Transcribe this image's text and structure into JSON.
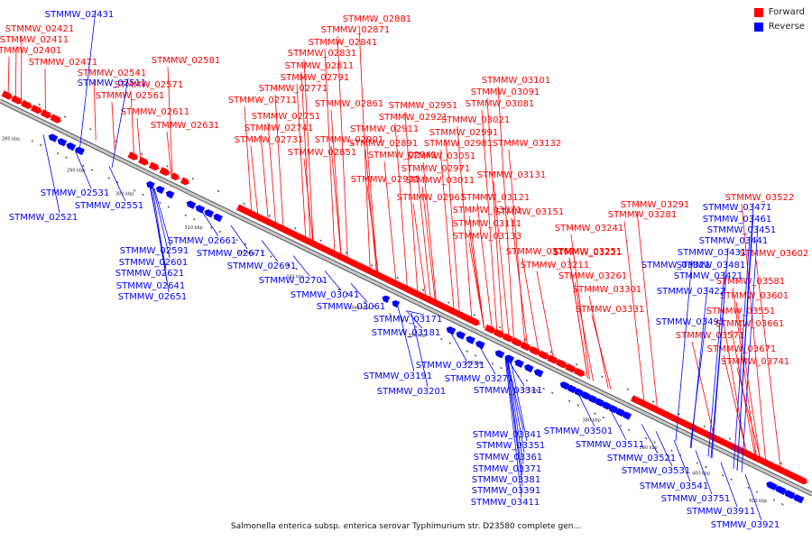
{
  "legend": {
    "forward": {
      "label": "Forward",
      "color": "#ff0000"
    },
    "reverse": {
      "label": "Reverse",
      "color": "#0000ff"
    }
  },
  "caption": "Salmonella enterica subsp. enterica serovar Typhimurium str. D23580 complete gen...",
  "ticks": [
    "280 kbp",
    "290 kbp",
    "300 kbp",
    "310 kbp",
    "320 kbp",
    "330 kbp",
    "340 kbp",
    "350 kbp",
    "360 kbp",
    "370 kbp",
    "380 kbp",
    "390 kbp",
    "400 kbp",
    "410 kbp"
  ],
  "forward_labels": [
    "STMMW_02401",
    "STMMW_02411",
    "STMMW_02421",
    "STMMW_02471",
    "STMMW_02541",
    "STMMW_02561",
    "STMMW_02571",
    "STMMW_02581",
    "STMMW_02611",
    "STMMW_02631",
    "STMMW_02711",
    "STMMW_02731",
    "STMMW_02741",
    "STMMW_02751",
    "STMMW_02771",
    "STMMW_02791",
    "STMMW_02811",
    "STMMW_02831",
    "STMMW_02841",
    "STMMW_02851",
    "STMMW_02861",
    "STMMW_02871",
    "STMMW_02881",
    "STMMW_02891",
    "STMMW_02901",
    "STMMW_02911",
    "STMMW_02921",
    "STMMW_02931",
    "STMMW_02941",
    "STMMW_02951",
    "STMMW_02961",
    "STMMW_02971",
    "STMMW_02981",
    "STMMW_02991",
    "STMMW_03011",
    "STMMW_03021",
    "STMMW_03051",
    "STMMW_03071",
    "STMMW_03081",
    "STMMW_03091",
    "STMMW_03101",
    "STMMW_03111",
    "STMMW_03121",
    "STMMW_03131",
    "STMMW_03132",
    "STMMW_03133",
    "STMMW_03151",
    "STMMW_03161",
    "STMMW_03211",
    "STMMW_03221",
    "STMMW_03241",
    "STMMW_03251",
    "STMMW_03261",
    "STMMW_03281",
    "STMMW_03291",
    "STMMW_03301",
    "STMMW_03331",
    "STMMW_03522",
    "STMMW_03551",
    "STMMW_03571",
    "STMMW_03581",
    "STMMW_03601",
    "STMMW_03602",
    "STMMW_03661",
    "STMMW_03671",
    "STMMW_03741"
  ],
  "reverse_labels": [
    "STMMW_02431",
    "STMMW_02511",
    "STMMW_02521",
    "STMMW_02531",
    "STMMW_02551",
    "STMMW_02591",
    "STMMW_02601",
    "STMMW_02621",
    "STMMW_02641",
    "STMMW_02651",
    "STMMW_02661",
    "STMMW_02671",
    "STMMW_02691",
    "STMMW_02701",
    "STMMW_03041",
    "STMMW_03061",
    "STMMW_03171",
    "STMMW_03181",
    "STMMW_03191",
    "STMMW_03201",
    "STMMW_03231",
    "STMMW_03271",
    "STMMW_03311",
    "STMMW_03321",
    "STMMW_03341",
    "STMMW_03351",
    "STMMW_03361",
    "STMMW_03371",
    "STMMW_03381",
    "STMMW_03391",
    "STMMW_03411",
    "STMMW_03421",
    "STMMW_03422",
    "STMMW_03431",
    "STMMW_03441",
    "STMMW_03451",
    "STMMW_03461",
    "STMMW_03471",
    "STMMW_03481",
    "STMMW_03491",
    "STMMW_03501",
    "STMMW_03511",
    "STMMW_03521",
    "STMMW_03531",
    "STMMW_03541",
    "STMMW_03751",
    "STMMW_03911",
    "STMMW_03921"
  ]
}
